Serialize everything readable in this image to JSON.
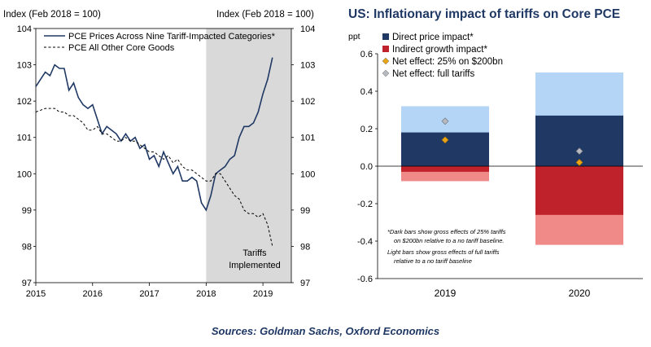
{
  "chart_data": [
    {
      "type": "line",
      "y_label_left": "Index (Feb 2018  = 100)",
      "y_label_right": "Index (Feb 2018  = 100)",
      "ylim": [
        97,
        104
      ],
      "y_ticks": [
        "97",
        "98",
        "99",
        "100",
        "101",
        "102",
        "103",
        "104"
      ],
      "xlim": [
        2015,
        2019.5
      ],
      "x_ticks": [
        "2015",
        "2016",
        "2017",
        "2018",
        "2019"
      ],
      "shaded_region": [
        2018,
        2019.5
      ],
      "annotation": [
        "Tariffs",
        "Implemented"
      ],
      "series": [
        {
          "name": "PCE Prices Across Nine Tariff-Impacted Categories*",
          "style": "solid",
          "color": "#1f3864",
          "x": [
            2015.0,
            2015.083,
            2015.167,
            2015.25,
            2015.333,
            2015.417,
            2015.5,
            2015.583,
            2015.667,
            2015.75,
            2015.833,
            2015.917,
            2016.0,
            2016.083,
            2016.167,
            2016.25,
            2016.333,
            2016.417,
            2016.5,
            2016.583,
            2016.667,
            2016.75,
            2016.833,
            2016.917,
            2017.0,
            2017.083,
            2017.167,
            2017.25,
            2017.333,
            2017.417,
            2017.5,
            2017.583,
            2017.667,
            2017.75,
            2017.833,
            2017.917,
            2018.0,
            2018.083,
            2018.167,
            2018.25,
            2018.333,
            2018.417,
            2018.5,
            2018.583,
            2018.667,
            2018.75,
            2018.833,
            2018.917,
            2019.0,
            2019.083,
            2019.167
          ],
          "values": [
            102.4,
            102.6,
            102.8,
            102.7,
            103.0,
            102.9,
            102.9,
            102.3,
            102.5,
            102.1,
            101.9,
            101.8,
            101.9,
            101.5,
            101.1,
            101.3,
            101.2,
            101.1,
            100.9,
            101.1,
            100.9,
            101.0,
            100.7,
            100.8,
            100.4,
            100.5,
            100.2,
            100.6,
            100.3,
            100.0,
            100.2,
            99.8,
            99.8,
            99.9,
            99.8,
            99.2,
            99.0,
            99.4,
            100.0,
            100.1,
            100.2,
            100.4,
            100.5,
            101.0,
            101.3,
            101.3,
            101.4,
            101.7,
            102.2,
            102.6,
            103.2
          ]
        },
        {
          "name": "PCE All Other Core Goods",
          "style": "dashed",
          "color": "#000000",
          "x": [
            2015.0,
            2015.083,
            2015.167,
            2015.25,
            2015.333,
            2015.417,
            2015.5,
            2015.583,
            2015.667,
            2015.75,
            2015.833,
            2015.917,
            2016.0,
            2016.083,
            2016.167,
            2016.25,
            2016.333,
            2016.417,
            2016.5,
            2016.583,
            2016.667,
            2016.75,
            2016.833,
            2016.917,
            2017.0,
            2017.083,
            2017.167,
            2017.25,
            2017.333,
            2017.417,
            2017.5,
            2017.583,
            2017.667,
            2017.75,
            2017.833,
            2017.917,
            2018.0,
            2018.083,
            2018.167,
            2018.25,
            2018.333,
            2018.417,
            2018.5,
            2018.583,
            2018.667,
            2018.75,
            2018.833,
            2018.917,
            2019.0,
            2019.083,
            2019.167
          ],
          "values": [
            101.7,
            101.75,
            101.8,
            101.8,
            101.8,
            101.7,
            101.7,
            101.6,
            101.6,
            101.5,
            101.4,
            101.2,
            101.2,
            101.3,
            101.1,
            101.1,
            101.0,
            100.9,
            100.9,
            101.0,
            100.9,
            100.9,
            100.8,
            100.7,
            100.6,
            100.6,
            100.5,
            100.4,
            100.5,
            100.3,
            100.4,
            100.2,
            100.1,
            100.1,
            100.0,
            99.9,
            99.8,
            99.8,
            100.0,
            100.0,
            99.8,
            99.6,
            99.4,
            99.3,
            99.0,
            98.9,
            98.9,
            98.8,
            98.9,
            98.6,
            98.0
          ]
        }
      ]
    },
    {
      "type": "bar",
      "title": "US: Inflationary impact of tariffs on Core PCE",
      "y_unit": "ppt",
      "ylim": [
        -0.6,
        0.6
      ],
      "y_ticks": [
        "0.6",
        "0.4",
        "0.2",
        "0.0",
        "-0.2",
        "-0.4",
        "-0.6"
      ],
      "categories": [
        "2019",
        "2020"
      ],
      "legend": [
        {
          "label": "Direct price impact*",
          "kind": "square",
          "color": "#1f3864"
        },
        {
          "label": "Indirect growth impact*",
          "kind": "square",
          "color": "#c0222b"
        },
        {
          "label": "Net effect: 25% on $200bn",
          "kind": "diamond",
          "color": "#e8a317"
        },
        {
          "label": "Net effect: full tariffs",
          "kind": "diamond",
          "color": "#b6b9bf"
        }
      ],
      "series": [
        {
          "name": "Direct price impact (25% on $200bn)",
          "color": "#1f3864",
          "values": [
            0.18,
            0.27
          ]
        },
        {
          "name": "Direct price impact (full tariffs)",
          "color": "#b4d5f6",
          "values": [
            0.32,
            0.5
          ]
        },
        {
          "name": "Indirect growth impact (25% on $200bn)",
          "color": "#c0222b",
          "values": [
            -0.03,
            -0.26
          ]
        },
        {
          "name": "Indirect growth impact (full tariffs)",
          "color": "#f08a89",
          "values": [
            -0.08,
            -0.42
          ]
        },
        {
          "name": "Net effect: 25% on $200bn",
          "color": "#e8a317",
          "values": [
            0.14,
            0.02
          ]
        },
        {
          "name": "Net effect: full tariffs",
          "color": "#b6b9bf",
          "values": [
            0.24,
            0.08
          ]
        }
      ],
      "footnote": [
        "*Dark bars show gross effects of 25% tariffs",
        "on $200bn relative to a no tariff baseline.",
        "Light bars show gross effects of full tariffs",
        "relative to a no tariff baseline"
      ]
    }
  ],
  "source": "Sources: Goldman Sachs, Oxford Economics"
}
